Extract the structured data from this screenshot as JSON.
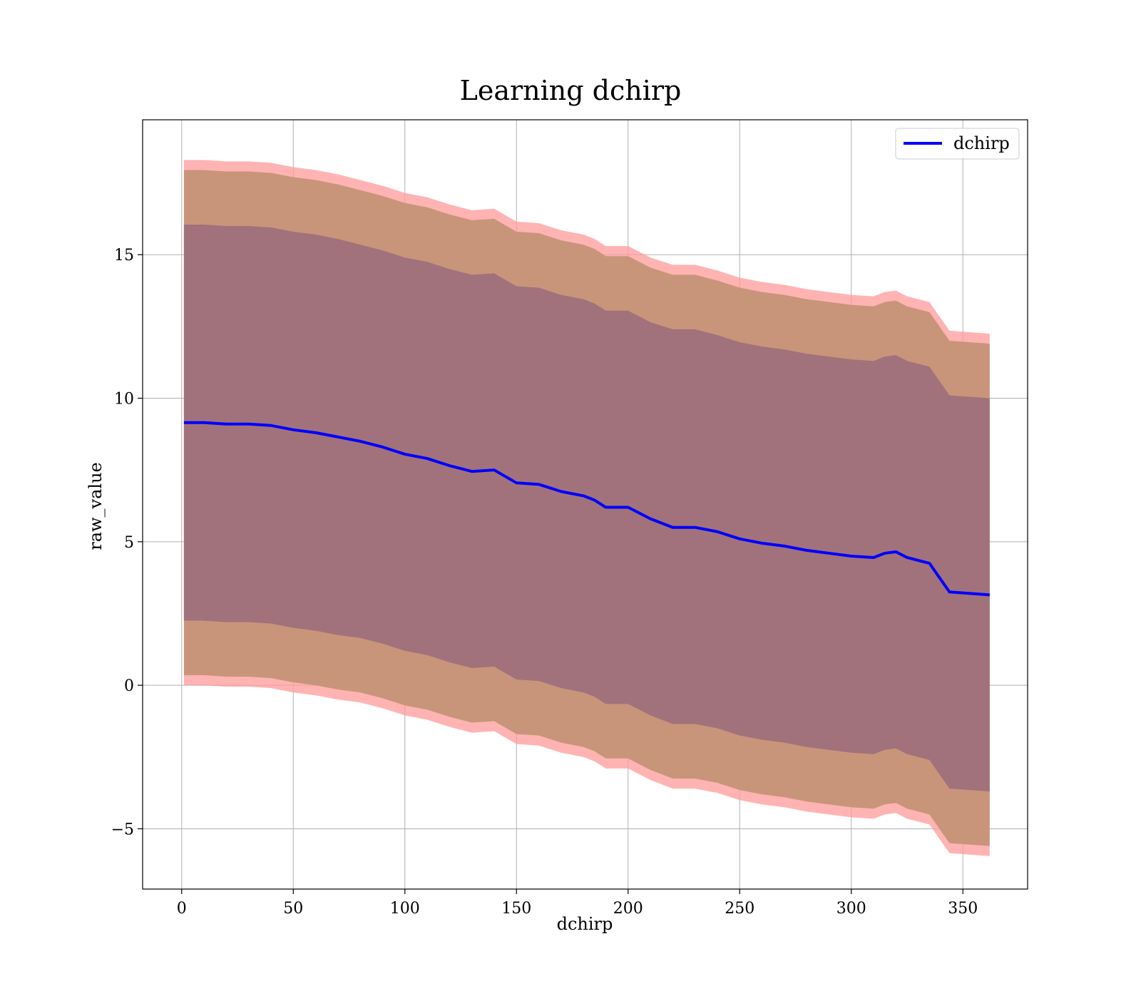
{
  "chart_data": {
    "type": "area",
    "title": "Learning dchirp",
    "xlabel": "dchirp",
    "ylabel": "raw_value",
    "xlim": [
      -17.5,
      379
    ],
    "ylim": [
      -7.1,
      19.7
    ],
    "grid": true,
    "legend": {
      "placement": "top-right",
      "entries": [
        "dchirp"
      ]
    },
    "x_ticks": [
      {
        "value": 0,
        "label": "0"
      },
      {
        "value": 50,
        "label": "50"
      },
      {
        "value": 100,
        "label": "100"
      },
      {
        "value": 150,
        "label": "150"
      },
      {
        "value": 200,
        "label": "200"
      },
      {
        "value": 250,
        "label": "250"
      },
      {
        "value": 300,
        "label": "300"
      },
      {
        "value": 350,
        "label": "350"
      }
    ],
    "y_ticks": [
      {
        "value": -5,
        "label": "−5"
      },
      {
        "value": 0,
        "label": "0"
      },
      {
        "value": 5,
        "label": "5"
      },
      {
        "value": 10,
        "label": "10"
      },
      {
        "value": 15,
        "label": "15"
      }
    ],
    "colors": {
      "mean_line": "#0000ff",
      "band_3sigma": "#ff9999",
      "band_2sigma": "#c8957a",
      "band_1sigma": "#a1727b",
      "grid": "#b0b0b0"
    },
    "x": [
      1,
      10,
      20,
      30,
      40,
      50,
      60,
      70,
      80,
      90,
      100,
      110,
      120,
      130,
      140,
      150,
      160,
      170,
      180,
      185,
      190,
      200,
      210,
      220,
      230,
      240,
      250,
      260,
      270,
      280,
      290,
      300,
      310,
      315,
      320,
      325,
      335,
      344,
      362
    ],
    "series": [
      {
        "name": "dchirp",
        "role": "mean",
        "values": [
          9.15,
          9.15,
          9.1,
          9.1,
          9.05,
          8.9,
          8.8,
          8.65,
          8.5,
          8.3,
          8.05,
          7.9,
          7.65,
          7.45,
          7.5,
          7.05,
          7.0,
          6.75,
          6.6,
          6.45,
          6.2,
          6.2,
          5.8,
          5.5,
          5.5,
          5.35,
          5.1,
          4.95,
          4.85,
          4.7,
          4.6,
          4.5,
          4.45,
          4.6,
          4.65,
          4.45,
          4.25,
          3.25,
          3.15
        ]
      },
      {
        "name": "band_1sigma",
        "upper": [
          16.05,
          16.05,
          16.0,
          16.0,
          15.95,
          15.8,
          15.7,
          15.55,
          15.35,
          15.15,
          14.9,
          14.75,
          14.5,
          14.3,
          14.35,
          13.9,
          13.85,
          13.6,
          13.45,
          13.3,
          13.05,
          13.05,
          12.65,
          12.4,
          12.4,
          12.2,
          11.95,
          11.8,
          11.7,
          11.55,
          11.45,
          11.35,
          11.3,
          11.45,
          11.5,
          11.3,
          11.1,
          10.1,
          10.0
        ],
        "lower": [
          2.25,
          2.25,
          2.2,
          2.2,
          2.15,
          2.0,
          1.9,
          1.75,
          1.65,
          1.45,
          1.2,
          1.05,
          0.8,
          0.6,
          0.65,
          0.2,
          0.15,
          -0.1,
          -0.25,
          -0.4,
          -0.65,
          -0.65,
          -1.05,
          -1.35,
          -1.35,
          -1.5,
          -1.75,
          -1.9,
          -2.0,
          -2.15,
          -2.25,
          -2.35,
          -2.4,
          -2.25,
          -2.2,
          -2.4,
          -2.6,
          -3.6,
          -3.7
        ]
      },
      {
        "name": "band_2sigma",
        "upper": [
          17.95,
          17.95,
          17.9,
          17.9,
          17.85,
          17.7,
          17.6,
          17.45,
          17.25,
          17.05,
          16.8,
          16.65,
          16.4,
          16.2,
          16.25,
          15.8,
          15.75,
          15.5,
          15.35,
          15.2,
          14.95,
          14.95,
          14.55,
          14.3,
          14.3,
          14.1,
          13.85,
          13.7,
          13.6,
          13.45,
          13.35,
          13.25,
          13.2,
          13.35,
          13.4,
          13.2,
          13.0,
          12.0,
          11.9
        ],
        "lower": [
          0.35,
          0.35,
          0.3,
          0.3,
          0.25,
          0.1,
          0.0,
          -0.15,
          -0.25,
          -0.45,
          -0.7,
          -0.85,
          -1.1,
          -1.3,
          -1.25,
          -1.7,
          -1.75,
          -2.0,
          -2.15,
          -2.3,
          -2.55,
          -2.55,
          -2.95,
          -3.25,
          -3.25,
          -3.4,
          -3.65,
          -3.8,
          -3.9,
          -4.05,
          -4.15,
          -4.25,
          -4.3,
          -4.15,
          -4.1,
          -4.3,
          -4.5,
          -5.5,
          -5.6
        ]
      },
      {
        "name": "band_3sigma",
        "upper": [
          18.3,
          18.3,
          18.25,
          18.25,
          18.2,
          18.05,
          17.95,
          17.8,
          17.6,
          17.4,
          17.15,
          17.0,
          16.75,
          16.55,
          16.6,
          16.15,
          16.1,
          15.85,
          15.7,
          15.55,
          15.3,
          15.3,
          14.9,
          14.65,
          14.65,
          14.45,
          14.2,
          14.05,
          13.95,
          13.8,
          13.7,
          13.6,
          13.55,
          13.7,
          13.75,
          13.55,
          13.35,
          12.35,
          12.25
        ],
        "lower": [
          0.0,
          0.0,
          -0.05,
          -0.05,
          -0.1,
          -0.25,
          -0.35,
          -0.5,
          -0.6,
          -0.8,
          -1.05,
          -1.2,
          -1.45,
          -1.65,
          -1.6,
          -2.05,
          -2.1,
          -2.35,
          -2.5,
          -2.65,
          -2.9,
          -2.9,
          -3.3,
          -3.6,
          -3.6,
          -3.75,
          -4.0,
          -4.15,
          -4.25,
          -4.4,
          -4.5,
          -4.6,
          -4.65,
          -4.5,
          -4.45,
          -4.65,
          -4.85,
          -5.85,
          -5.95
        ]
      }
    ]
  }
}
